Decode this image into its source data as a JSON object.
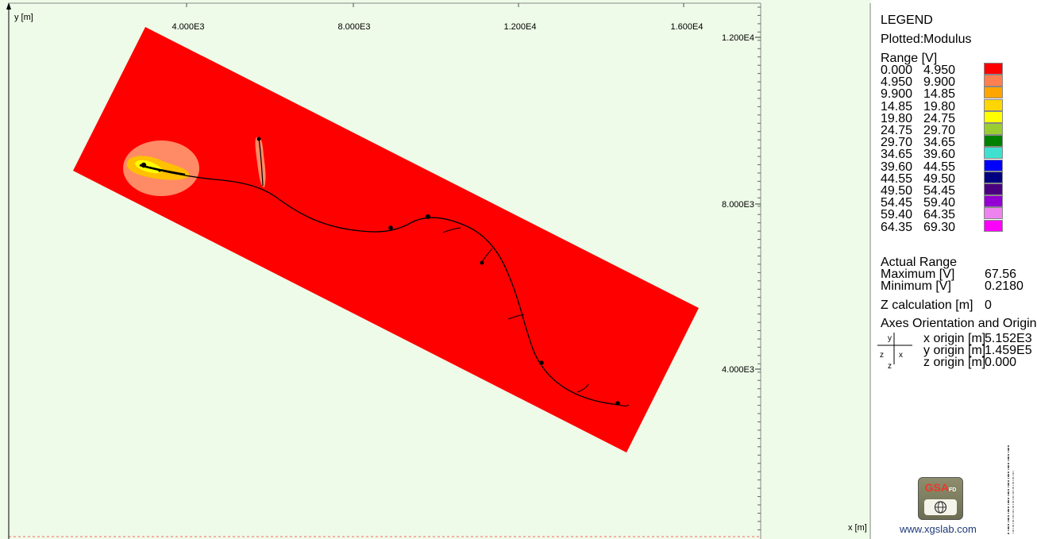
{
  "plot": {
    "y_axis_label": "y [m]",
    "x_axis_label": "x [m]",
    "x_ticks": [
      "4.000E3",
      "8.000E3",
      "1.200E4",
      "1.600E4"
    ],
    "y_ticks": [
      "1.200E4",
      "8.000E3",
      "4.000E3"
    ],
    "colors": {
      "background": "#eefbe8",
      "field": "#ff0000",
      "halo_outer": "#ff9a72",
      "halo_mid": "#ffc000",
      "halo_inner": "#ffff00"
    }
  },
  "legend": {
    "title": "LEGEND",
    "plotted_label": "Plotted:",
    "plotted_value": "Modulus",
    "range_label": "Range [V]",
    "ranges": [
      {
        "from": "0.000",
        "to": "4.950",
        "color": "#ff0000"
      },
      {
        "from": "4.950",
        "to": "9.900",
        "color": "#ff7f50"
      },
      {
        "from": "9.900",
        "to": "14.85",
        "color": "#ffa500"
      },
      {
        "from": "14.85",
        "to": "19.80",
        "color": "#ffd700"
      },
      {
        "from": "19.80",
        "to": "24.75",
        "color": "#ffff00"
      },
      {
        "from": "24.75",
        "to": "29.70",
        "color": "#9acd32"
      },
      {
        "from": "29.70",
        "to": "34.65",
        "color": "#008000"
      },
      {
        "from": "34.65",
        "to": "39.60",
        "color": "#40e0d0"
      },
      {
        "from": "39.60",
        "to": "44.55",
        "color": "#0000ff"
      },
      {
        "from": "44.55",
        "to": "49.50",
        "color": "#000080"
      },
      {
        "from": "49.50",
        "to": "54.45",
        "color": "#4b0082"
      },
      {
        "from": "54.45",
        "to": "59.40",
        "color": "#9400d3"
      },
      {
        "from": "59.40",
        "to": "64.35",
        "color": "#ee82ee"
      },
      {
        "from": "64.35",
        "to": "69.30",
        "color": "#ff00ff"
      }
    ],
    "actual_range_label": "Actual Range",
    "maximum_label": "Maximum [V]",
    "maximum_value": "67.56",
    "minimum_label": "Minimum [V]",
    "minimum_value": "0.2180",
    "z_calc_label": "Z calculation [m]",
    "z_calc_value": "0",
    "axes_label": "Axes Orientation and Origin",
    "axes_glyph": {
      "y": "y",
      "x": "x",
      "z": "z",
      "z2": "z"
    },
    "x_origin_label": "x origin [m]",
    "x_origin_value": "5.152E3",
    "y_origin_label": "y origin [m]",
    "y_origin_value": "1.459E5",
    "z_origin_label": "z origin [m]",
    "z_origin_value": "0.000",
    "logo_text": "GSA",
    "logo_suffix": "FD",
    "website": "www.xgslab.com"
  }
}
